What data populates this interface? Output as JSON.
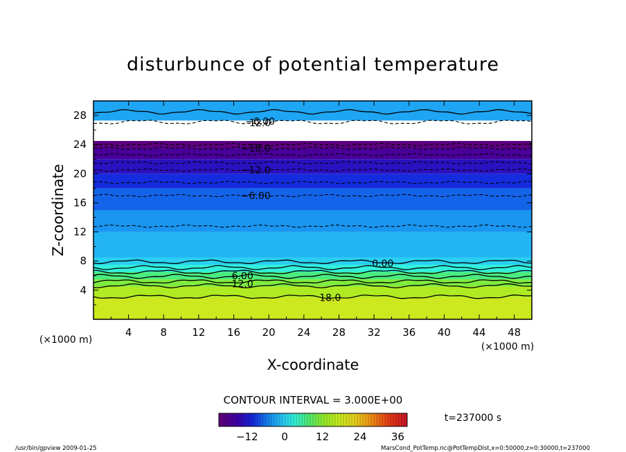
{
  "chart_data": {
    "type": "heatmap",
    "title": "disturbunce of potential temperature",
    "xlabel": "X-coordinate",
    "ylabel": "Z-coordinate",
    "x_unit": "(×1000 m)",
    "y_unit": "(×1000 m)",
    "xlim": [
      0,
      50
    ],
    "ylim": [
      0,
      30
    ],
    "x_ticks": [
      "4",
      "8",
      "12",
      "16",
      "20",
      "24",
      "28",
      "32",
      "36",
      "40",
      "44",
      "48"
    ],
    "y_ticks": [
      "4",
      "8",
      "12",
      "16",
      "20",
      "24",
      "28"
    ],
    "contour_interval": "CONTOUR INTERVAL = 3.000E+00",
    "time_label": "t=237000 s",
    "colorbar": {
      "min": -21,
      "max": 39,
      "ticks": [
        "−12",
        "0",
        "12",
        "24",
        "36"
      ],
      "tick_values": [
        -12,
        0,
        12,
        24,
        36
      ]
    },
    "contour_labels": [
      {
        "text": "−18.0",
        "x": 18.5,
        "z": 23.5
      },
      {
        "text": "−12.0",
        "x": 18.5,
        "z": 20.5
      },
      {
        "text": "−6.00",
        "x": 18.5,
        "z": 17.0
      },
      {
        "text": "0.00",
        "x": 33.0,
        "z": 7.7
      },
      {
        "text": "6.00",
        "x": 17.0,
        "z": 6.0
      },
      {
        "text": "12.0",
        "x": 17.0,
        "z": 4.9
      },
      {
        "text": "18.0",
        "x": 27.0,
        "z": 3.0
      },
      {
        "text": "−6.00",
        "x": 19.0,
        "z": 27.2
      },
      {
        "text": "12.0",
        "x": 19.0,
        "z": 27.0
      }
    ],
    "field_layers": [
      {
        "z_from": 0.0,
        "z_to": 3.0,
        "value": 18
      },
      {
        "z_from": 3.0,
        "z_to": 4.5,
        "value": 15
      },
      {
        "z_from": 4.5,
        "z_to": 5.5,
        "value": 11
      },
      {
        "z_from": 5.5,
        "z_to": 6.5,
        "value": 7
      },
      {
        "z_from": 6.5,
        "z_to": 7.5,
        "value": 3
      },
      {
        "z_from": 7.5,
        "z_to": 8.5,
        "value": 0
      },
      {
        "z_from": 8.5,
        "z_to": 12.0,
        "value": -2
      },
      {
        "z_from": 12.0,
        "z_to": 15.0,
        "value": -4
      },
      {
        "z_from": 15.0,
        "z_to": 18.0,
        "value": -7
      },
      {
        "z_from": 18.0,
        "z_to": 20.0,
        "value": -10
      },
      {
        "z_from": 20.0,
        "z_to": 22.0,
        "value": -13
      },
      {
        "z_from": 22.0,
        "z_to": 23.5,
        "value": -17
      },
      {
        "z_from": 23.5,
        "z_to": 24.5,
        "value": -20
      },
      {
        "z_from": 27.3,
        "z_to": 30.0,
        "value": -3
      }
    ],
    "contour_levels_z": [
      {
        "z": 3.1,
        "style": "solid"
      },
      {
        "z": 4.6,
        "style": "solid"
      },
      {
        "z": 5.2,
        "style": "solid"
      },
      {
        "z": 5.9,
        "style": "solid"
      },
      {
        "z": 6.5,
        "style": "solid"
      },
      {
        "z": 7.1,
        "style": "solid"
      },
      {
        "z": 7.9,
        "style": "solid"
      },
      {
        "z": 12.8,
        "style": "dashed"
      },
      {
        "z": 17.0,
        "style": "dashed"
      },
      {
        "z": 18.8,
        "style": "dashed"
      },
      {
        "z": 20.5,
        "style": "dashed"
      },
      {
        "z": 21.5,
        "style": "dashed"
      },
      {
        "z": 22.6,
        "style": "dashed"
      },
      {
        "z": 23.5,
        "style": "dashed"
      },
      {
        "z": 24.0,
        "style": "dashed"
      },
      {
        "z": 27.1,
        "style": "dashed"
      },
      {
        "z": 28.5,
        "style": "solid"
      }
    ]
  },
  "footer": {
    "left": "/usr/bin/gpview   2009-01-25",
    "right": "MarsCond_PotTemp.nc@PotTempDist,x=0:50000,z=0:30000,t=237000"
  }
}
